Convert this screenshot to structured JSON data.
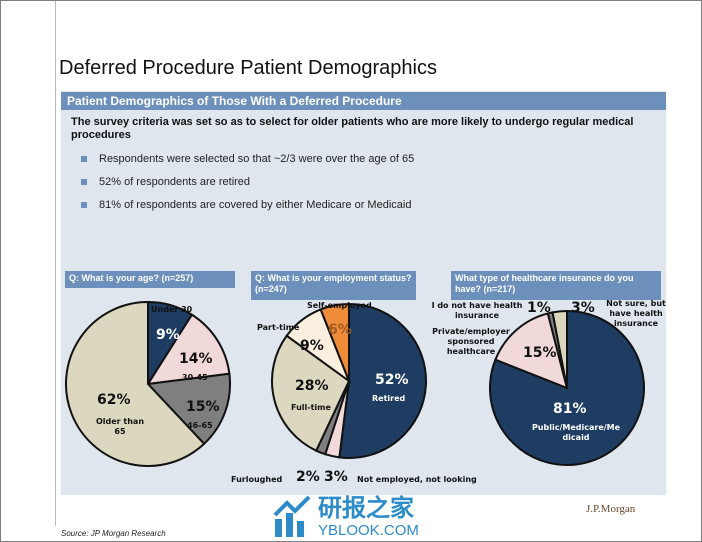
{
  "title": "Deferred Procedure Patient Demographics",
  "section_header": "Patient Demographics of Those With a Deferred Procedure",
  "intro": "The survey criteria was set so as to select for older patients who are more likely to undergo regular medical procedures",
  "bullets": [
    "Respondents were selected so that ~2/3 were over the age of 65",
    "52% of respondents are retired",
    "81% of respondents are covered by either Medicare or Medicaid"
  ],
  "source": "Source: JP Morgan Research",
  "logo": "J.P.Morgan",
  "watermark": {
    "cn": "研报之家",
    "en": "YBLOOK.COM"
  },
  "chart_data": [
    {
      "type": "pie",
      "title": "Q: What is your age? (n=257)",
      "slices": [
        {
          "label": "Under 30",
          "value": 9,
          "pct": "9%",
          "color": "#1f3d63"
        },
        {
          "label": "30-45",
          "value": 14,
          "pct": "14%",
          "color": "#f2d9d9"
        },
        {
          "label": "46-65",
          "value": 15,
          "pct": "15%",
          "color": "#7f7f7f"
        },
        {
          "label": "Older than 65",
          "value": 62,
          "pct": "62%",
          "color": "#dcd8c0"
        }
      ]
    },
    {
      "type": "pie",
      "title": "Q: What is your employment status? (n=247)",
      "slices": [
        {
          "label": "Retired",
          "value": 52,
          "pct": "52%",
          "color": "#1f3d63"
        },
        {
          "label": "Not employed, not looking",
          "value": 3,
          "pct": "3%",
          "color": "#f2d9d9"
        },
        {
          "label": "Furloughed",
          "value": 2,
          "pct": "2%",
          "color": "#7f7f7f"
        },
        {
          "label": "Full-time",
          "value": 28,
          "pct": "28%",
          "color": "#dcd8c0"
        },
        {
          "label": "Part-time",
          "value": 9,
          "pct": "9%",
          "color": "#fbf0e0"
        },
        {
          "label": "Self-employed",
          "value": 6,
          "pct": "6%",
          "color": "#ee8c3a"
        }
      ]
    },
    {
      "type": "pie",
      "title": "What type of healthcare insurance do you have? (n=217)",
      "slices": [
        {
          "label": "Public/Medicare/Medicaid",
          "value": 81,
          "pct": "81%",
          "color": "#1f3d63"
        },
        {
          "label": "Private/employer sponsored healthcare",
          "value": 15,
          "pct": "15%",
          "color": "#f2d9d9"
        },
        {
          "label": "I do not have health insurance",
          "value": 1,
          "pct": "1%",
          "color": "#7f7f7f"
        },
        {
          "label": "Not sure, but have health insurance",
          "value": 3,
          "pct": "3%",
          "color": "#dcd8c0"
        }
      ]
    }
  ]
}
